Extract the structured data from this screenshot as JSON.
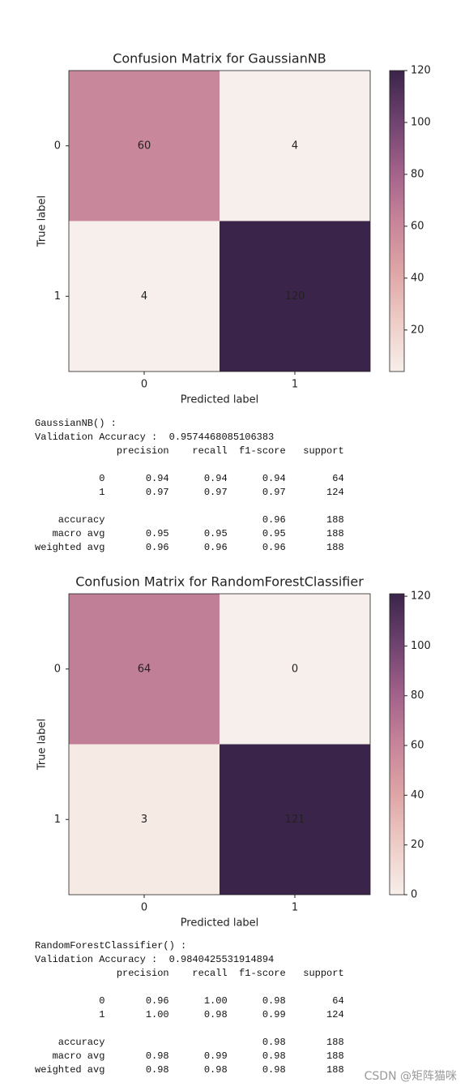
{
  "chart_data": [
    {
      "type": "heatmap",
      "title": "Confusion Matrix for GaussianNB",
      "xlabel": "Predicted label",
      "ylabel": "True label",
      "x_categories": [
        "0",
        "1"
      ],
      "y_categories": [
        "0",
        "1"
      ],
      "values": [
        [
          60,
          4
        ],
        [
          4,
          120
        ]
      ],
      "colorbar_lim": [
        4,
        120
      ],
      "colorbar_ticks": [
        20,
        40,
        60,
        80,
        100,
        120
      ],
      "colors": [
        "#f7efeb",
        "#eeccc6",
        "#dea5a5",
        "#c7849a",
        "#a2618a",
        "#6e426f",
        "#3b2449"
      ]
    },
    {
      "type": "heatmap",
      "title": "Confusion Matrix for RandomForestClassifier",
      "xlabel": "Predicted label",
      "ylabel": "True label",
      "x_categories": [
        "0",
        "1"
      ],
      "y_categories": [
        "0",
        "1"
      ],
      "values": [
        [
          64,
          0
        ],
        [
          3,
          121
        ]
      ],
      "colorbar_lim": [
        0,
        121
      ],
      "colorbar_ticks": [
        0,
        20,
        40,
        60,
        80,
        100,
        120
      ],
      "colors": [
        "#f7efeb",
        "#eeccc6",
        "#dea5a5",
        "#c7849a",
        "#a2618a",
        "#6e426f",
        "#3b2449"
      ]
    }
  ],
  "reports": [
    [
      "GaussianNB() :",
      "Validation Accuracy :  0.9574468085106383",
      "              precision    recall  f1-score   support",
      "           0       0.94      0.94      0.94        64",
      "           1       0.97      0.97      0.97       124",
      "    accuracy                           0.96       188",
      "   macro avg       0.95      0.95      0.95       188",
      "weighted avg       0.96      0.96      0.96       188"
    ],
    [
      "RandomForestClassifier() :",
      "Validation Accuracy :  0.9840425531914894",
      "              precision    recall  f1-score   support",
      "           0       0.96      1.00      0.98        64",
      "           1       1.00      0.98      0.99       124",
      "    accuracy                           0.98       188",
      "   macro avg       0.98      0.99      0.98       188",
      "weighted avg       0.98      0.98      0.98       188"
    ]
  ],
  "watermark": "CSDN @矩阵猫咪"
}
